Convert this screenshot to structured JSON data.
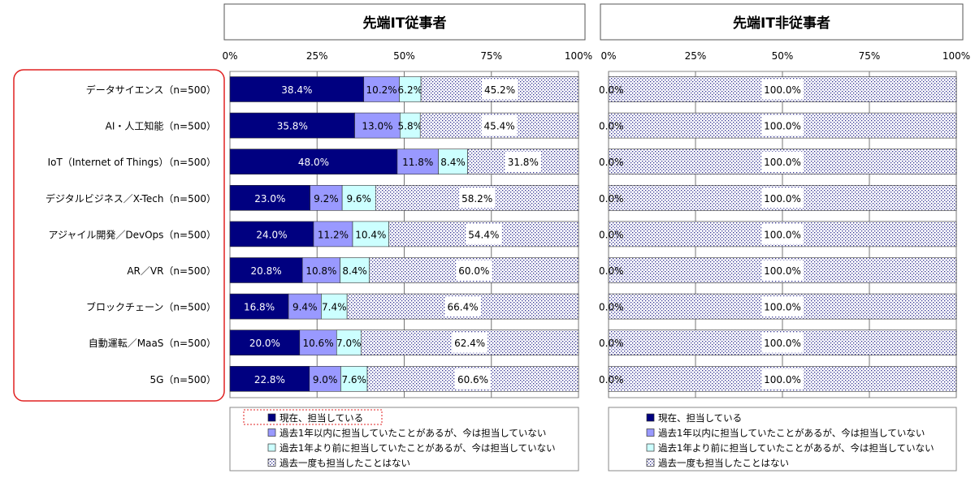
{
  "chart_data": [
    {
      "type": "bar",
      "stacked": "horizontal-100",
      "title": "先端IT従事者",
      "xlim": [
        0,
        100
      ],
      "xticks": [
        "0%",
        "25%",
        "50%",
        "75%",
        "100%"
      ],
      "categories": [
        "データサイエンス（n=500）",
        "AI・人工知能（n=500）",
        "IoT（Internet of Things）（n=500）",
        "デジタルビジネス／X-Tech（n=500）",
        "アジャイル開発／DevOps（n=500）",
        "AR／VR（n=500）",
        "ブロックチェーン（n=500）",
        "自動運転／MaaS（n=500）",
        "5G（n=500）"
      ],
      "series": [
        {
          "name": "現在、担当している",
          "color": "#000080",
          "values": [
            38.4,
            35.8,
            48.0,
            23.0,
            24.0,
            20.8,
            16.8,
            20.0,
            22.8
          ]
        },
        {
          "name": "過去1年以内に担当していたことがあるが、今は担当していない",
          "color": "#9999ff",
          "values": [
            10.2,
            13.0,
            11.8,
            9.2,
            11.2,
            10.8,
            9.4,
            10.6,
            9.0
          ]
        },
        {
          "name": "過去1年より前に担当していたことがあるが、今は担当していない",
          "color": "#ccffff",
          "values": [
            6.2,
            5.8,
            8.4,
            9.6,
            10.4,
            8.4,
            7.4,
            7.0,
            7.6
          ]
        },
        {
          "name": "過去一度も担当したことはない",
          "color": "dots",
          "values": [
            45.2,
            45.4,
            31.8,
            58.2,
            54.4,
            60.0,
            66.4,
            62.4,
            60.6
          ]
        }
      ],
      "legend": "bottom"
    },
    {
      "type": "bar",
      "stacked": "horizontal-100",
      "title": "先端IT非従事者",
      "xlim": [
        0,
        100
      ],
      "xticks": [
        "0%",
        "25%",
        "50%",
        "75%",
        "100%"
      ],
      "series": [
        {
          "name": "現在、担当している",
          "color": "#000080",
          "values": [
            0,
            0,
            0,
            0,
            0,
            0,
            0,
            0,
            0
          ]
        },
        {
          "name": "過去1年以内に担当していたことがあるが、今は担当していない",
          "color": "#9999ff",
          "values": [
            0,
            0,
            0,
            0,
            0,
            0,
            0,
            0,
            0
          ]
        },
        {
          "name": "過去1年より前に担当していたことがあるが、今は担当していない",
          "color": "#ccffff",
          "values": [
            0,
            0,
            0,
            0,
            0,
            0,
            0,
            0,
            0
          ]
        },
        {
          "name": "過去一度も担当したことはない",
          "color": "dots",
          "values": [
            100.0,
            100.0,
            100.0,
            100.0,
            100.0,
            100.0,
            100.0,
            100.0,
            100.0
          ]
        }
      ],
      "zero_label": "0.0%",
      "legend": "bottom"
    }
  ]
}
